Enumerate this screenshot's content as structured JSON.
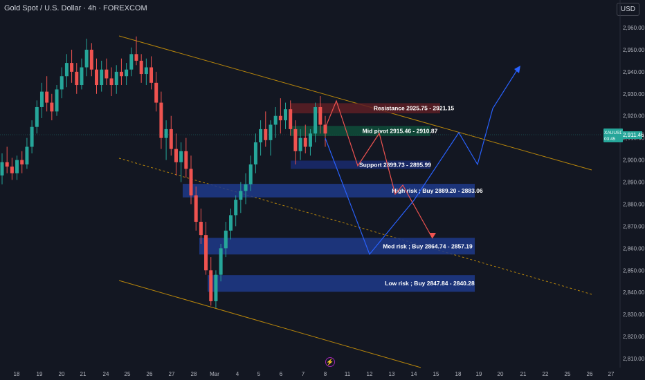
{
  "header": {
    "title": "Gold Spot / U.S. Dollar · 4h · FOREXCOM",
    "currency": "USD"
  },
  "price_label": {
    "symbol": "XAUUSD",
    "price": "2,911.46",
    "countdown": "03:45"
  },
  "colors": {
    "background": "#131722",
    "bull": "#26a69a",
    "bear": "#ef5350",
    "bear_path": "#ef5350",
    "bull_path": "#2962ff",
    "channel": "#b8860b",
    "buy_zone": "#1e3a8a",
    "resistance_zone": "#5d1f24",
    "pivot_zone": "#0f4d3a",
    "support_zone": "#1a2a6e"
  },
  "chart_data": {
    "type": "candlestick",
    "y_ticks": [
      "2,960.00",
      "2,950.00",
      "2,940.00",
      "2,930.00",
      "2,920.00",
      "2,910.00",
      "2,900.00",
      "2,890.00",
      "2,880.00",
      "2,870.00",
      "2,860.00",
      "2,850.00",
      "2,840.00",
      "2,830.00",
      "2,820.00",
      "2,810.00"
    ],
    "x_ticks": [
      "18",
      "19",
      "20",
      "21",
      "24",
      "25",
      "26",
      "27",
      "28",
      "Mar",
      "4",
      "5",
      "6",
      "7",
      "8",
      "11",
      "12",
      "13",
      "14",
      "15",
      "18",
      "19",
      "20",
      "21",
      "22",
      "25",
      "26",
      "27"
    ],
    "zones": [
      {
        "label": "Resistance 2925.75 - 2921.15",
        "high": 2925.75,
        "low": 2921.15,
        "kind": "resistance"
      },
      {
        "label": "Mid pivot 2915.46 - 2910.87",
        "high": 2915.46,
        "low": 2910.87,
        "kind": "pivot"
      },
      {
        "label": "Support 2899.73 - 2895.99",
        "high": 2899.73,
        "low": 2895.99,
        "kind": "support"
      },
      {
        "label": "High risk ; Buy 2889.20 - 2883.06",
        "high": 2889.2,
        "low": 2883.06,
        "kind": "buy"
      },
      {
        "label": "Med risk ; Buy 2864.74 - 2857.19",
        "high": 2864.74,
        "low": 2857.19,
        "kind": "buy"
      },
      {
        "label": "Low risk ; Buy 2847.84 - 2840.28",
        "high": 2847.84,
        "low": 2840.28,
        "kind": "buy"
      }
    ],
    "current_price": 2911.46,
    "candles_ohlc": [
      [
        2893,
        2903,
        2889,
        2899
      ],
      [
        2899,
        2906,
        2894,
        2897
      ],
      [
        2897,
        2901,
        2891,
        2894
      ],
      [
        2894,
        2902,
        2891,
        2900
      ],
      [
        2900,
        2904,
        2894,
        2898
      ],
      [
        2898,
        2910,
        2896,
        2906
      ],
      [
        2906,
        2918,
        2903,
        2915
      ],
      [
        2915,
        2927,
        2912,
        2924
      ],
      [
        2924,
        2935,
        2919,
        2931
      ],
      [
        2931,
        2938,
        2922,
        2926
      ],
      [
        2926,
        2930,
        2918,
        2922
      ],
      [
        2922,
        2934,
        2920,
        2932
      ],
      [
        2932,
        2942,
        2928,
        2938
      ],
      [
        2938,
        2948,
        2933,
        2944
      ],
      [
        2944,
        2950,
        2935,
        2940
      ],
      [
        2940,
        2944,
        2930,
        2934
      ],
      [
        2934,
        2946,
        2932,
        2942
      ],
      [
        2942,
        2955,
        2938,
        2950
      ],
      [
        2950,
        2953,
        2938,
        2941
      ],
      [
        2941,
        2946,
        2930,
        2934
      ],
      [
        2934,
        2945,
        2931,
        2941
      ],
      [
        2941,
        2946,
        2934,
        2937
      ],
      [
        2937,
        2942,
        2929,
        2934
      ],
      [
        2934,
        2943,
        2930,
        2940
      ],
      [
        2940,
        2946,
        2934,
        2938
      ],
      [
        2938,
        2944,
        2934,
        2941
      ],
      [
        2941,
        2951,
        2938,
        2948
      ],
      [
        2948,
        2956,
        2943,
        2945
      ],
      [
        2945,
        2948,
        2935,
        2939
      ],
      [
        2939,
        2946,
        2934,
        2942
      ],
      [
        2942,
        2947,
        2932,
        2935
      ],
      [
        2935,
        2940,
        2922,
        2926
      ],
      [
        2926,
        2931,
        2905,
        2910
      ],
      [
        2910,
        2918,
        2900,
        2914
      ],
      [
        2914,
        2920,
        2902,
        2905
      ],
      [
        2905,
        2912,
        2893,
        2899
      ],
      [
        2899,
        2908,
        2890,
        2904
      ],
      [
        2904,
        2910,
        2892,
        2896
      ],
      [
        2896,
        2902,
        2880,
        2884
      ],
      [
        2884,
        2888,
        2868,
        2872
      ],
      [
        2872,
        2878,
        2862,
        2866
      ],
      [
        2866,
        2872,
        2848,
        2850
      ],
      [
        2850,
        2856,
        2834,
        2836
      ],
      [
        2836,
        2850,
        2833,
        2848
      ],
      [
        2848,
        2862,
        2845,
        2860
      ],
      [
        2860,
        2872,
        2856,
        2868
      ],
      [
        2868,
        2878,
        2864,
        2875
      ],
      [
        2875,
        2884,
        2870,
        2882
      ],
      [
        2882,
        2890,
        2876,
        2886
      ],
      [
        2886,
        2894,
        2880,
        2889
      ],
      [
        2889,
        2902,
        2886,
        2898
      ],
      [
        2898,
        2912,
        2894,
        2908
      ],
      [
        2908,
        2918,
        2902,
        2914
      ],
      [
        2914,
        2922,
        2906,
        2909
      ],
      [
        2909,
        2918,
        2902,
        2916
      ],
      [
        2916,
        2924,
        2910,
        2920
      ],
      [
        2920,
        2928,
        2912,
        2918
      ],
      [
        2918,
        2926,
        2914,
        2923
      ],
      [
        2923,
        2927,
        2911,
        2914
      ],
      [
        2914,
        2918,
        2898,
        2904
      ],
      [
        2904,
        2914,
        2900,
        2910
      ],
      [
        2910,
        2916,
        2903,
        2906
      ],
      [
        2906,
        2914,
        2902,
        2912
      ],
      [
        2912,
        2926,
        2908,
        2924
      ],
      [
        2924,
        2929,
        2912,
        2916
      ],
      [
        2916,
        2920,
        2906,
        2912
      ]
    ],
    "forecast_paths": [
      {
        "name": "",
        "color": "bear",
        "points": [
          [
            "8",
            2912
          ],
          [
            "8.5",
            2926
          ],
          [
            "10",
            2900
          ],
          [
            "11",
            2916
          ],
          [
            "12",
            2886
          ],
          [
            "13",
            2893
          ],
          [
            "14",
            2864
          ]
        ]
      },
      {
        "name": "",
        "color": "bull",
        "points": [
          [
            "8",
            2908
          ],
          [
            "11",
            2859
          ],
          [
            "14",
            2886
          ],
          [
            "16",
            2911
          ],
          [
            "17",
            2898
          ],
          [
            "18",
            2920
          ],
          [
            "19",
            2914
          ],
          [
            "21",
            2940
          ]
        ]
      }
    ]
  }
}
